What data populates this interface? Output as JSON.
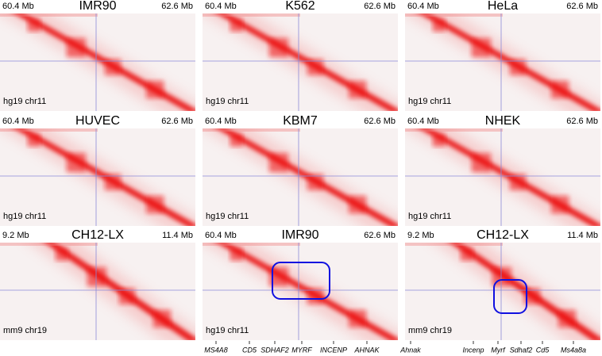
{
  "panels": [
    {
      "title": "IMR90",
      "left": "60.4 Mb",
      "right": "62.6 Mb",
      "genome": "hg19 chr11"
    },
    {
      "title": "K562",
      "left": "60.4 Mb",
      "right": "62.6 Mb",
      "genome": "hg19 chr11"
    },
    {
      "title": "HeLa",
      "left": "60.4 Mb",
      "right": "62.6 Mb",
      "genome": "hg19 chr11"
    },
    {
      "title": "HUVEC",
      "left": "60.4 Mb",
      "right": "62.6 Mb",
      "genome": "hg19 chr11"
    },
    {
      "title": "KBM7",
      "left": "60.4 Mb",
      "right": "62.6 Mb",
      "genome": "hg19 chr11"
    },
    {
      "title": "NHEK",
      "left": "60.4 Mb",
      "right": "62.6 Mb",
      "genome": "hg19 chr11"
    },
    {
      "title": "CH12-LX",
      "left": "9.2 Mb",
      "right": "11.4 Mb",
      "genome": "mm9 chr19"
    },
    {
      "title": "IMR90",
      "left": "60.4 Mb",
      "right": "62.6 Mb",
      "genome": "hg19 chr11"
    },
    {
      "title": "CH12-LX",
      "left": "9.2 Mb",
      "right": "11.4 Mb",
      "genome": "mm9 chr19"
    }
  ],
  "genes_human": [
    "MS4A8",
    "CD5",
    "SDHAF2",
    "MYRF",
    "INCENP",
    "AHNAK"
  ],
  "genes_mouse": [
    "Ahnak",
    "Incenp",
    "Myrf",
    "Sdhaf2",
    "Cd5",
    "Ms4a8a"
  ]
}
